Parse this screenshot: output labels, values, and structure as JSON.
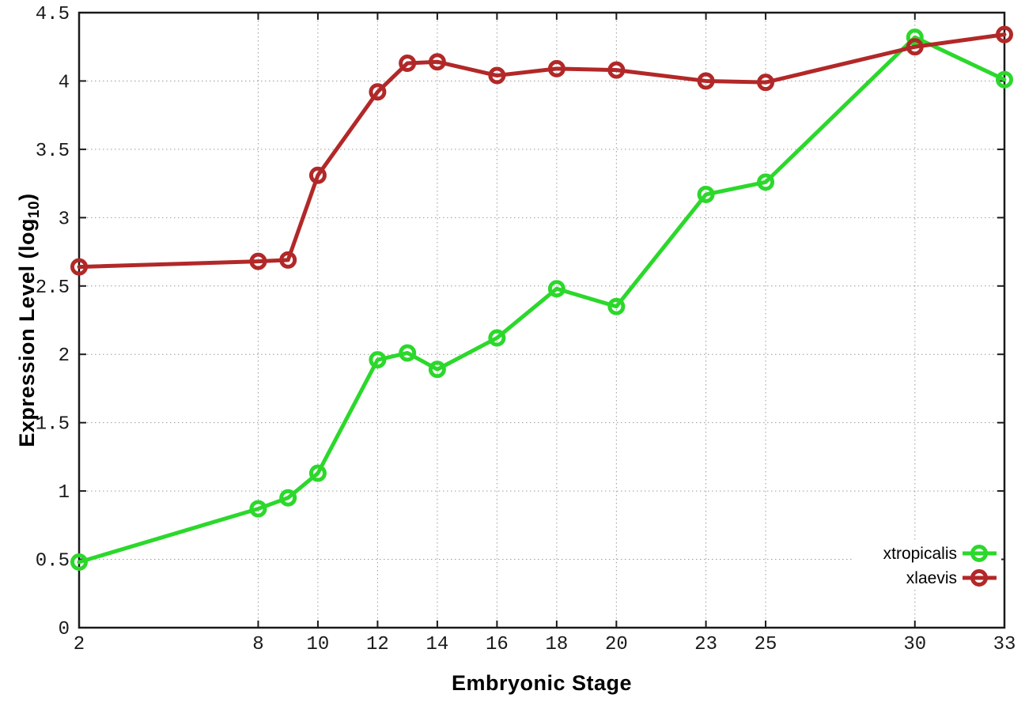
{
  "figure": {
    "xlabel": "Embryonic Stage",
    "ylabel_prefix": "Expression Level (log",
    "ylabel_sub": "10",
    "ylabel_suffix": ")"
  },
  "chart_data": {
    "type": "line",
    "title": "",
    "xlabel": "Embryonic Stage",
    "ylabel": "Expression Level (log10)",
    "xlim": [
      2,
      33
    ],
    "ylim": [
      0,
      4.5
    ],
    "grid": true,
    "grid_style": "dotted",
    "legend_position": "bottom-right",
    "x": [
      2,
      8,
      9,
      10,
      12,
      13,
      14,
      16,
      18,
      20,
      23,
      25,
      30,
      33
    ],
    "xtick_values": [
      2,
      8,
      10,
      12,
      14,
      16,
      18,
      20,
      23,
      25,
      30,
      33
    ],
    "xtick_labels": [
      "2",
      "8",
      "10",
      "12",
      "14",
      "16",
      "18",
      "20",
      "23",
      "25",
      "30",
      "33"
    ],
    "ytick_values": [
      0,
      0.5,
      1,
      1.5,
      2,
      2.5,
      3,
      3.5,
      4,
      4.5
    ],
    "ytick_labels": [
      "0",
      "0.5",
      "1",
      "1.5",
      "2",
      "2.5",
      "3",
      "3.5",
      "4",
      "4.5"
    ],
    "series": [
      {
        "name": "xtropicalis",
        "color": "#2bd82b",
        "marker": "open-circle",
        "values": [
          0.48,
          0.87,
          0.95,
          1.13,
          1.96,
          2.01,
          1.89,
          2.12,
          2.48,
          2.35,
          3.17,
          3.26,
          4.32,
          4.01
        ]
      },
      {
        "name": "xlaevis",
        "color": "#b22828",
        "marker": "open-circle",
        "values": [
          2.64,
          2.68,
          2.69,
          3.31,
          3.92,
          4.13,
          4.14,
          4.04,
          4.09,
          4.08,
          4.0,
          3.99,
          4.25,
          4.34
        ]
      }
    ]
  },
  "colors": {
    "border": "#1a1a1a",
    "grid": "#9a9a9a",
    "background": "#ffffff"
  }
}
